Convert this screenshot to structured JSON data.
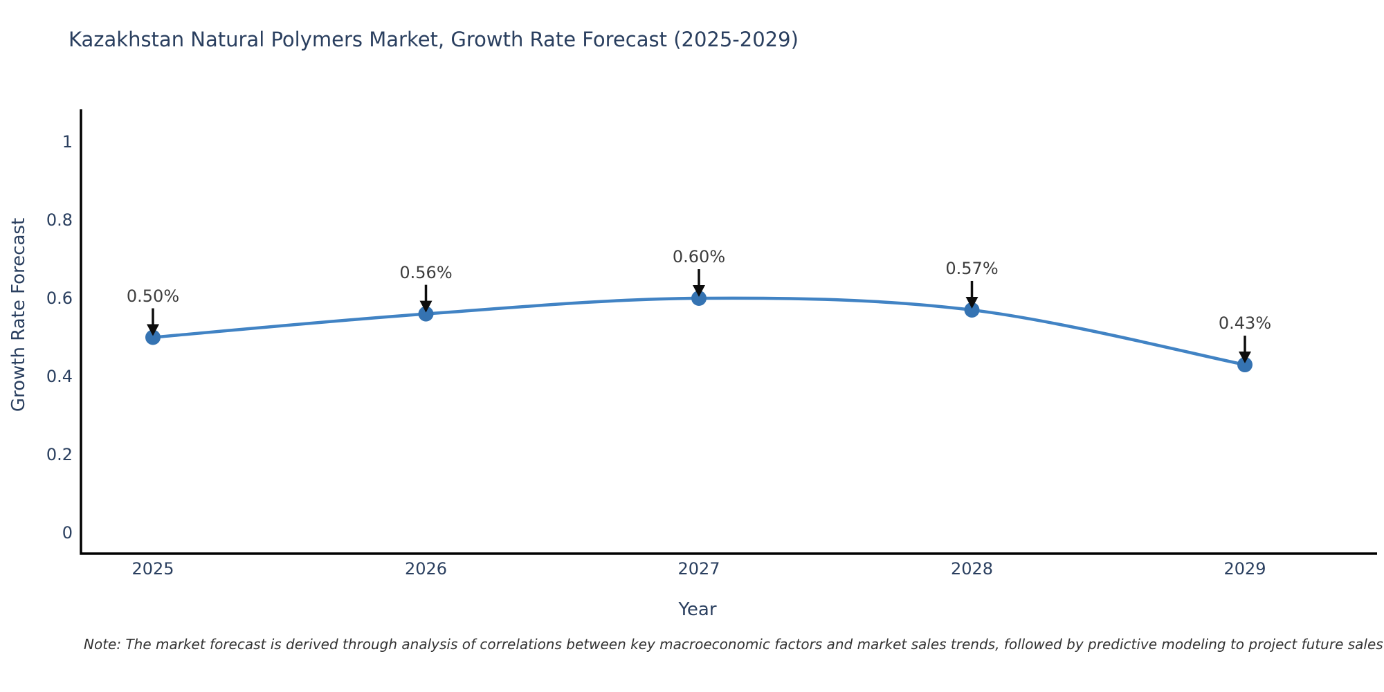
{
  "title": "Kazakhstan Natural Polymers Market, Growth Rate Forecast (2025-2029)",
  "note": "Note: The market forecast is derived through analysis of correlations between key macroeconomic factors and market sales trends, followed by predictive modeling to project future sales",
  "chart_data": {
    "type": "line",
    "title": "Kazakhstan Natural Polymers Market, Growth Rate Forecast (2025-2029)",
    "xlabel": "Year",
    "ylabel": "Growth Rate Forecast",
    "categories": [
      "2025",
      "2026",
      "2027",
      "2028",
      "2029"
    ],
    "values": [
      0.5,
      0.56,
      0.6,
      0.57,
      0.43
    ],
    "point_labels": [
      "0.50%",
      "0.56%",
      "0.60%",
      "0.57%",
      "0.43%"
    ],
    "series_name": "Growth Rate Forecast",
    "ylim": [
      0,
      1.08
    ],
    "yticks": [
      0,
      0.2,
      0.4,
      0.6,
      0.8,
      1
    ],
    "ytick_labels": [
      "0",
      "0.2",
      "0.4",
      "0.6",
      "0.8",
      "1"
    ],
    "line_shape": "spline",
    "grid": false,
    "legend_position": "none",
    "colors": {
      "line": "#4183c4",
      "marker": "#3573b2",
      "axis": "#000000",
      "annotation_arrow": "#0d0d0d",
      "axis_text": "#2a3f5f",
      "annotation_text": "#3d3d3d"
    }
  }
}
